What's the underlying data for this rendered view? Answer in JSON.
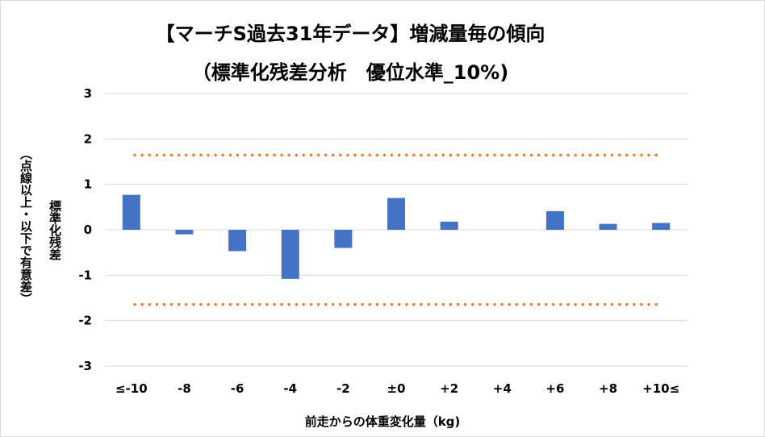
{
  "chart_data": {
    "type": "bar",
    "title_line1": "【マーチS過去31年データ】増減量毎の傾向",
    "title_line2": "（標準化残差分析　優位水準_10%)",
    "ylabel_main": "標準化残差",
    "ylabel_sub": "（点線以上・以下で有意差）",
    "xlabel": "前走からの体重変化量（kg)",
    "categories": [
      "≤-10",
      "-8",
      "-6",
      "-4",
      "-2",
      "±0",
      "+2",
      "+4",
      "+6",
      "+8",
      "+10≤"
    ],
    "values": [
      0.77,
      -0.1,
      -0.47,
      -1.08,
      -0.4,
      0.7,
      0.18,
      0.0,
      0.41,
      0.13,
      0.15
    ],
    "ylim": [
      -3,
      3
    ],
    "yticks": [
      "3",
      "2",
      "1",
      "0",
      "-1",
      "-2",
      "-3"
    ],
    "threshold_upper": 1.645,
    "threshold_lower": -1.645,
    "grid": true,
    "colors": {
      "bar": "#4472C4",
      "threshold": "#ED7D31",
      "grid": "#d9d9d9"
    }
  }
}
